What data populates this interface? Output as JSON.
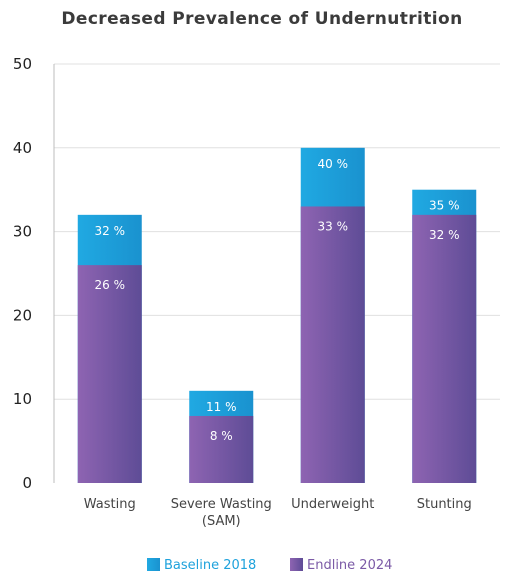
{
  "chart_data": {
    "type": "bar",
    "title": "Decreased Prevalence of Undernutrition",
    "categories": [
      [
        "Wasting"
      ],
      [
        "Severe Wasting",
        "(SAM)"
      ],
      [
        "Underweight"
      ],
      [
        "Stunting"
      ]
    ],
    "series": [
      {
        "name": "Baseline 2018",
        "values": [
          32,
          11,
          40,
          35
        ],
        "labels": [
          "32 %",
          "11 %",
          "40 %",
          "35 %"
        ],
        "color": "#1ea2dc"
      },
      {
        "name": "Endline 2024",
        "values": [
          26,
          8,
          33,
          32
        ],
        "labels": [
          "26 %",
          "8 %",
          "33 %",
          "32 %"
        ],
        "color": "#7b5aa6"
      }
    ],
    "yticks": [
      "0",
      "10",
      "20",
      "30",
      "40",
      "50"
    ],
    "ylim": [
      0,
      50
    ],
    "grid": true,
    "legend_position": "bottom-center"
  }
}
